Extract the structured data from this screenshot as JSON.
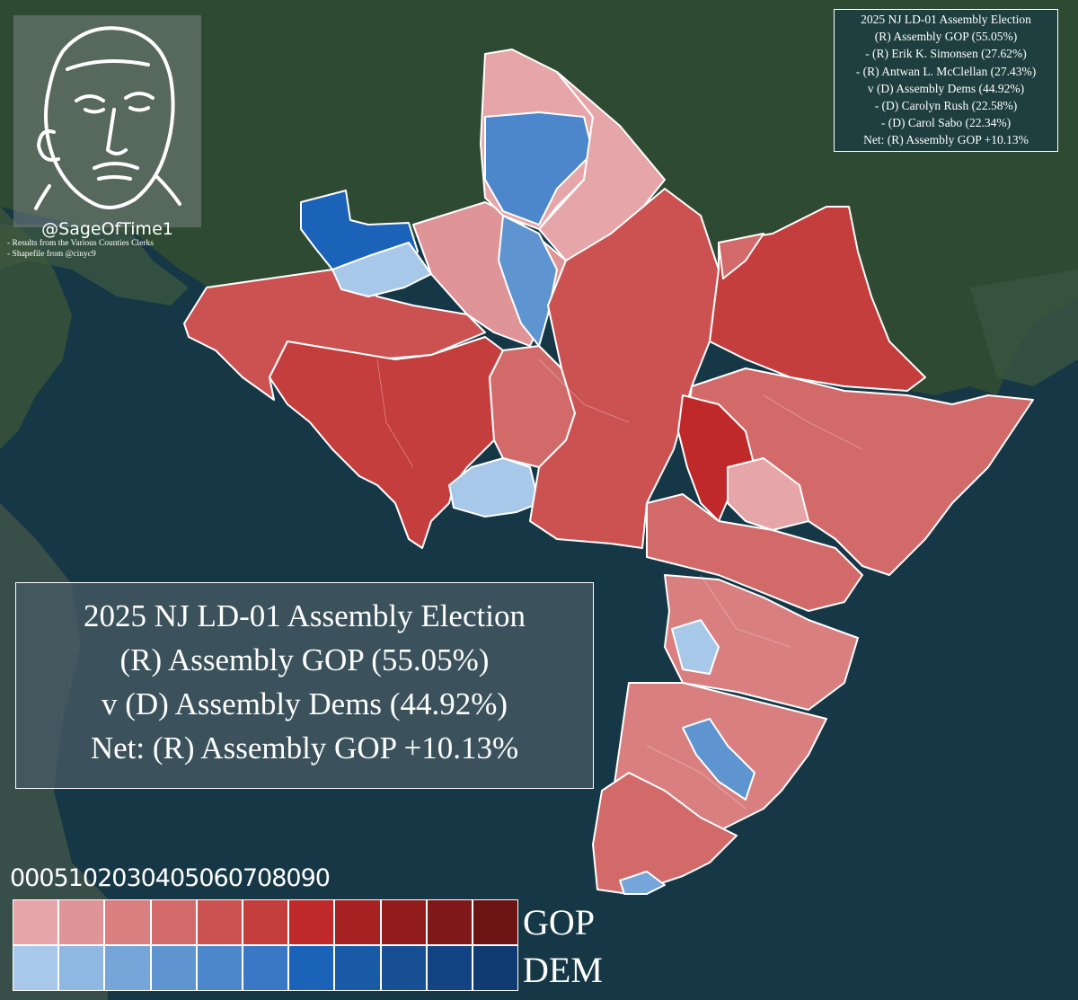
{
  "credit": {
    "handle": "@SageOfTime1",
    "sources": [
      "- Results from the Various Counties Clerks",
      "- Shapefile from @cinyc9"
    ]
  },
  "legend_box": {
    "lines": [
      "2025 NJ LD-01 Assembly Election",
      "(R) Assembly GOP (55.05%)",
      "- (R) Erik K. Simonsen (27.62%)",
      "- (R) Antwan L. McClellan (27.43%)",
      "v (D) Assembly Dems (44.92%)",
      "- (D) Carolyn Rush (22.58%)",
      "- (D) Carol Sabo (22.34%)",
      "Net: (R) Assembly GOP +10.13%"
    ]
  },
  "summary_box": {
    "lines": [
      "2025 NJ LD-01 Assembly Election",
      "(R) Assembly GOP (55.05%)",
      "v (D) Assembly Dems (44.92%)",
      "Net: (R) Assembly GOP +10.13%"
    ]
  },
  "color_scale": {
    "ticks": [
      "00",
      "05",
      "10",
      "20",
      "30",
      "40",
      "50",
      "60",
      "70",
      "80",
      "90"
    ],
    "gop_label": "GOP",
    "dem_label": "DEM",
    "gop_colors": [
      "#e6a6a9",
      "#df9497",
      "#d97f80",
      "#d36a6a",
      "#cc5252",
      "#c53e3e",
      "#c0292a",
      "#a62121",
      "#921c1c",
      "#7f1818",
      "#6c1414"
    ],
    "dem_colors": [
      "#a7c8e8",
      "#8eb8e2",
      "#76a6d9",
      "#5e95d1",
      "#4c86cb",
      "#3a77c4",
      "#1a63b9",
      "#195aa7",
      "#164f94",
      "#134383",
      "#103a72"
    ]
  },
  "map": {
    "water_color": "#163746",
    "land_color": "#2f4a32",
    "icon": "sage-portrait-icon"
  }
}
